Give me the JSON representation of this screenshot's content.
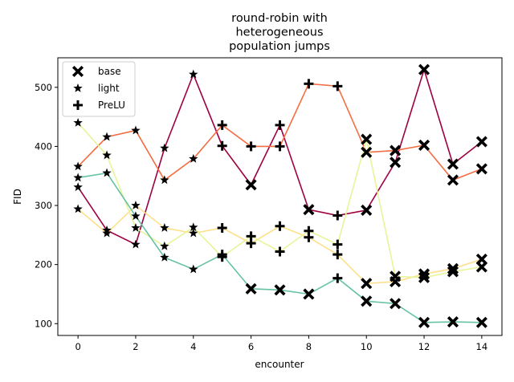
{
  "chart_data": {
    "type": "line",
    "title_lines": [
      "round-robin with",
      "heterogeneous",
      "population jumps"
    ],
    "xlabel": "encounter",
    "ylabel": "FID",
    "xlim": [
      -0.7,
      14.7
    ],
    "ylim": [
      80,
      550
    ],
    "xticks": [
      0,
      2,
      4,
      6,
      8,
      10,
      12,
      14
    ],
    "yticks": [
      100,
      200,
      300,
      400,
      500
    ],
    "grid": false,
    "legend_position": "top-left",
    "legend": [
      {
        "label": "base",
        "marker": "X"
      },
      {
        "label": "light",
        "marker": "star"
      },
      {
        "label": "PreLU",
        "marker": "plus"
      }
    ],
    "x": [
      0,
      1,
      2,
      3,
      4,
      5,
      6,
      7,
      8,
      9,
      10,
      11,
      12,
      13,
      14
    ],
    "series": [
      {
        "color": "#9e0142",
        "values": [
          331,
          258,
          234,
          397,
          522,
          401,
          335,
          436,
          293,
          283,
          292,
          373,
          530,
          370,
          408
        ],
        "markers": [
          "star",
          "star",
          "star",
          "star",
          "star",
          "plus",
          "X",
          "plus",
          "X",
          "plus",
          "X",
          "X",
          "X",
          "X",
          "X"
        ]
      },
      {
        "color": "#f46d43",
        "values": [
          366,
          416,
          427,
          343,
          379,
          436,
          400,
          400,
          506,
          502,
          390,
          393,
          402,
          343,
          362
        ],
        "markers": [
          "star",
          "star",
          "star",
          "star",
          "star",
          "plus",
          "plus",
          "plus",
          "plus",
          "plus",
          "X",
          "X",
          "X",
          "X",
          "X"
        ]
      },
      {
        "color": "#fee08b",
        "values": [
          294,
          253,
          300,
          262,
          253,
          262,
          236,
          265,
          246,
          217,
          168,
          171,
          184,
          193,
          209
        ],
        "markers": [
          "star",
          "star",
          "star",
          "star",
          "star",
          "plus",
          "plus",
          "plus",
          "plus",
          "plus",
          "X",
          "X",
          "X",
          "X",
          "X"
        ]
      },
      {
        "color": "#e6f598",
        "values": [
          440,
          385,
          262,
          231,
          263,
          213,
          248,
          222,
          257,
          234,
          412,
          180,
          178,
          188,
          196
        ],
        "markers": [
          "star",
          "star",
          "star",
          "star",
          "star",
          "plus",
          "plus",
          "plus",
          "plus",
          "plus",
          "X",
          "X",
          "X",
          "X",
          "X"
        ]
      },
      {
        "color": "#66c2a5",
        "values": [
          347,
          355,
          282,
          212,
          192,
          217,
          159,
          157,
          150,
          177,
          138,
          134,
          102,
          103,
          102
        ],
        "markers": [
          "star",
          "star",
          "star",
          "star",
          "star",
          "plus",
          "X",
          "X",
          "X",
          "plus",
          "X",
          "X",
          "X",
          "X",
          "X"
        ]
      }
    ]
  }
}
